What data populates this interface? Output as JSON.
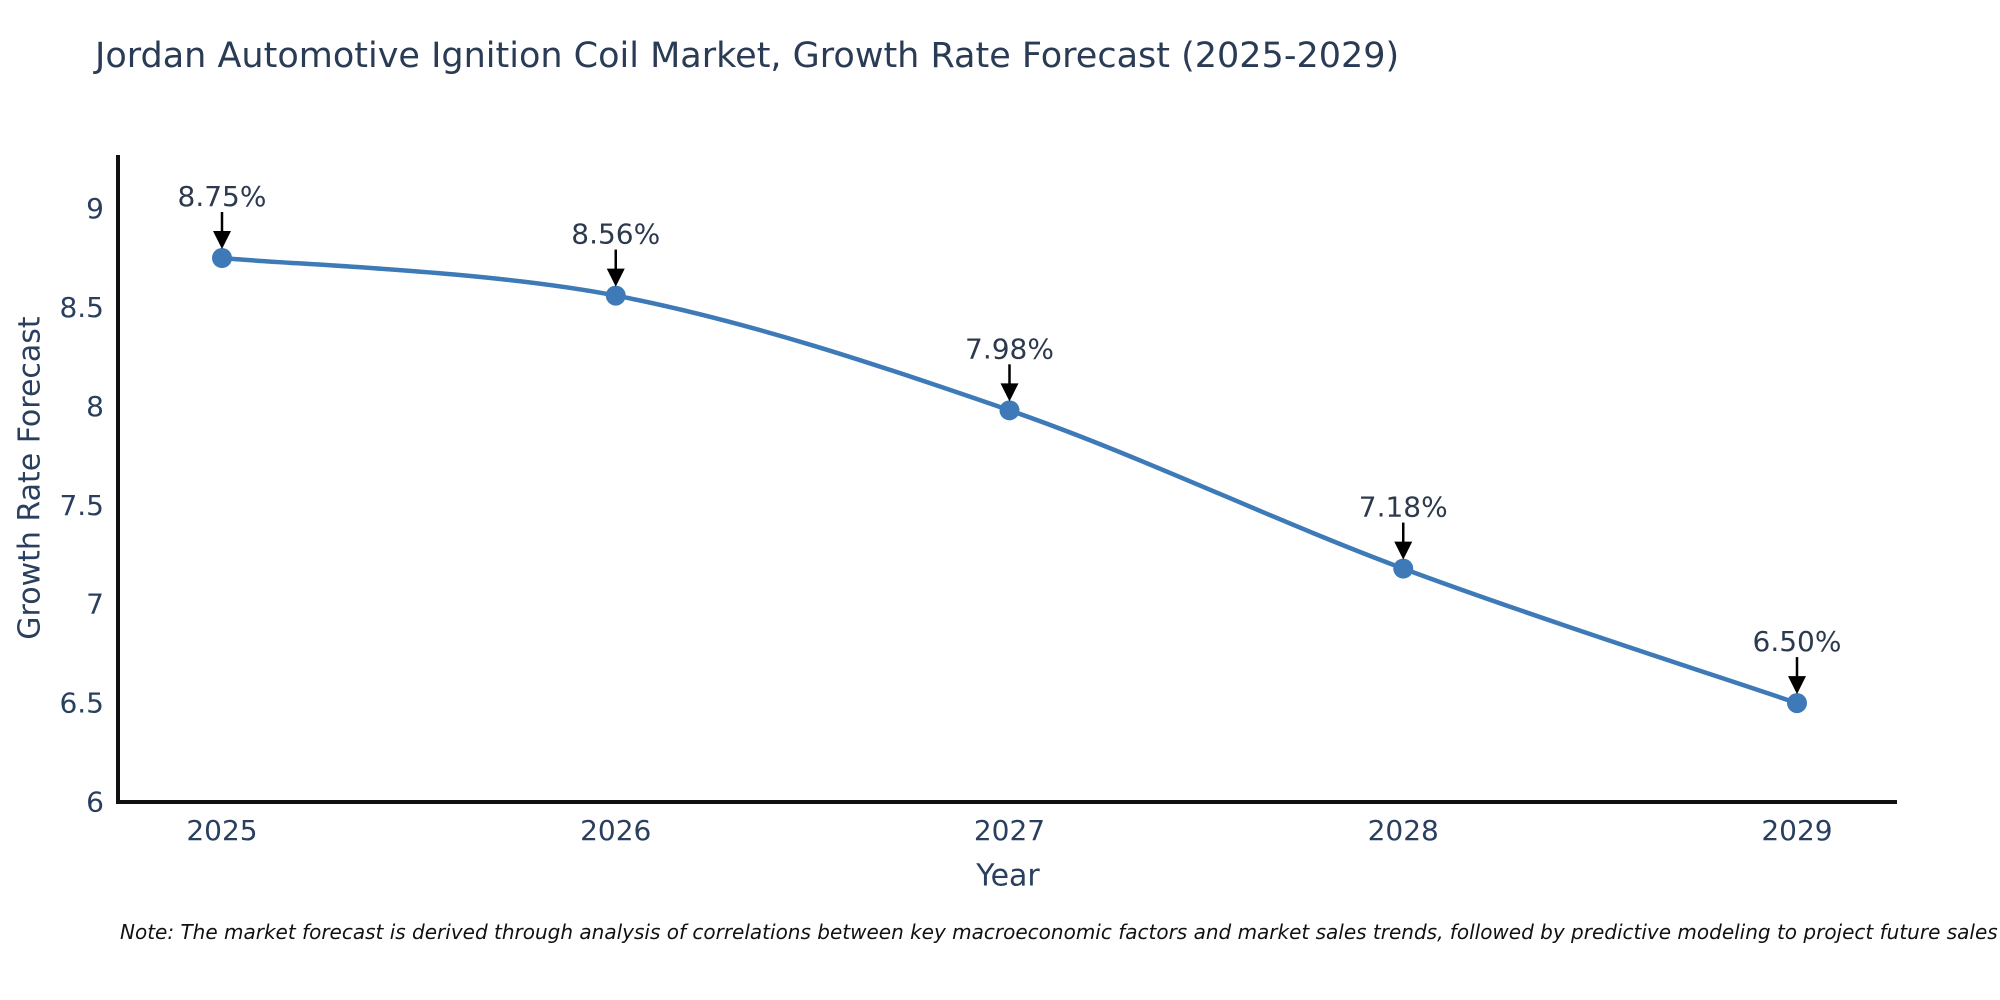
{
  "page": {
    "title": "Jordan Automotive Ignition Coil Market, Growth Rate Forecast (2025-2029)",
    "note": "Note: The market forecast is derived through analysis of correlations between key macroeconomic factors and market sales trends, followed by predictive modeling to project future sales"
  },
  "chart_data": {
    "type": "line",
    "title": "Jordan Automotive Ignition Coil Market, Growth Rate Forecast (2025-2029)",
    "xlabel": "Year",
    "ylabel": "Growth Rate Forecast",
    "x": [
      2025,
      2026,
      2027,
      2028,
      2029
    ],
    "values": [
      8.75,
      8.56,
      7.98,
      7.18,
      6.5
    ],
    "point_labels": [
      "8.75%",
      "8.56%",
      "7.98%",
      "7.18%",
      "6.50%"
    ],
    "series_name": "Growth Rate Forecast",
    "line_shape": "spline",
    "yticks": [
      6,
      6.5,
      7,
      7.5,
      8,
      8.5,
      9
    ],
    "ytick_labels": [
      "6",
      "6.5",
      "7",
      "7.5",
      "8",
      "8.5",
      "9"
    ],
    "xtick_labels": [
      "2025",
      "2026",
      "2027",
      "2028",
      "2029"
    ],
    "ylim": [
      6,
      9.27
    ],
    "grid": false,
    "legend_position": "none",
    "colors": {
      "line": "#3d7ab7",
      "marker": "#3d7ab7",
      "axis_line": "#111111",
      "annotation_arrow": "#000000",
      "annotation_text": "#2d3a4e",
      "tick_text": "#2a3f5f",
      "title_text": "#2a3b55",
      "note_text": "#111111",
      "background": "#ffffff"
    }
  }
}
